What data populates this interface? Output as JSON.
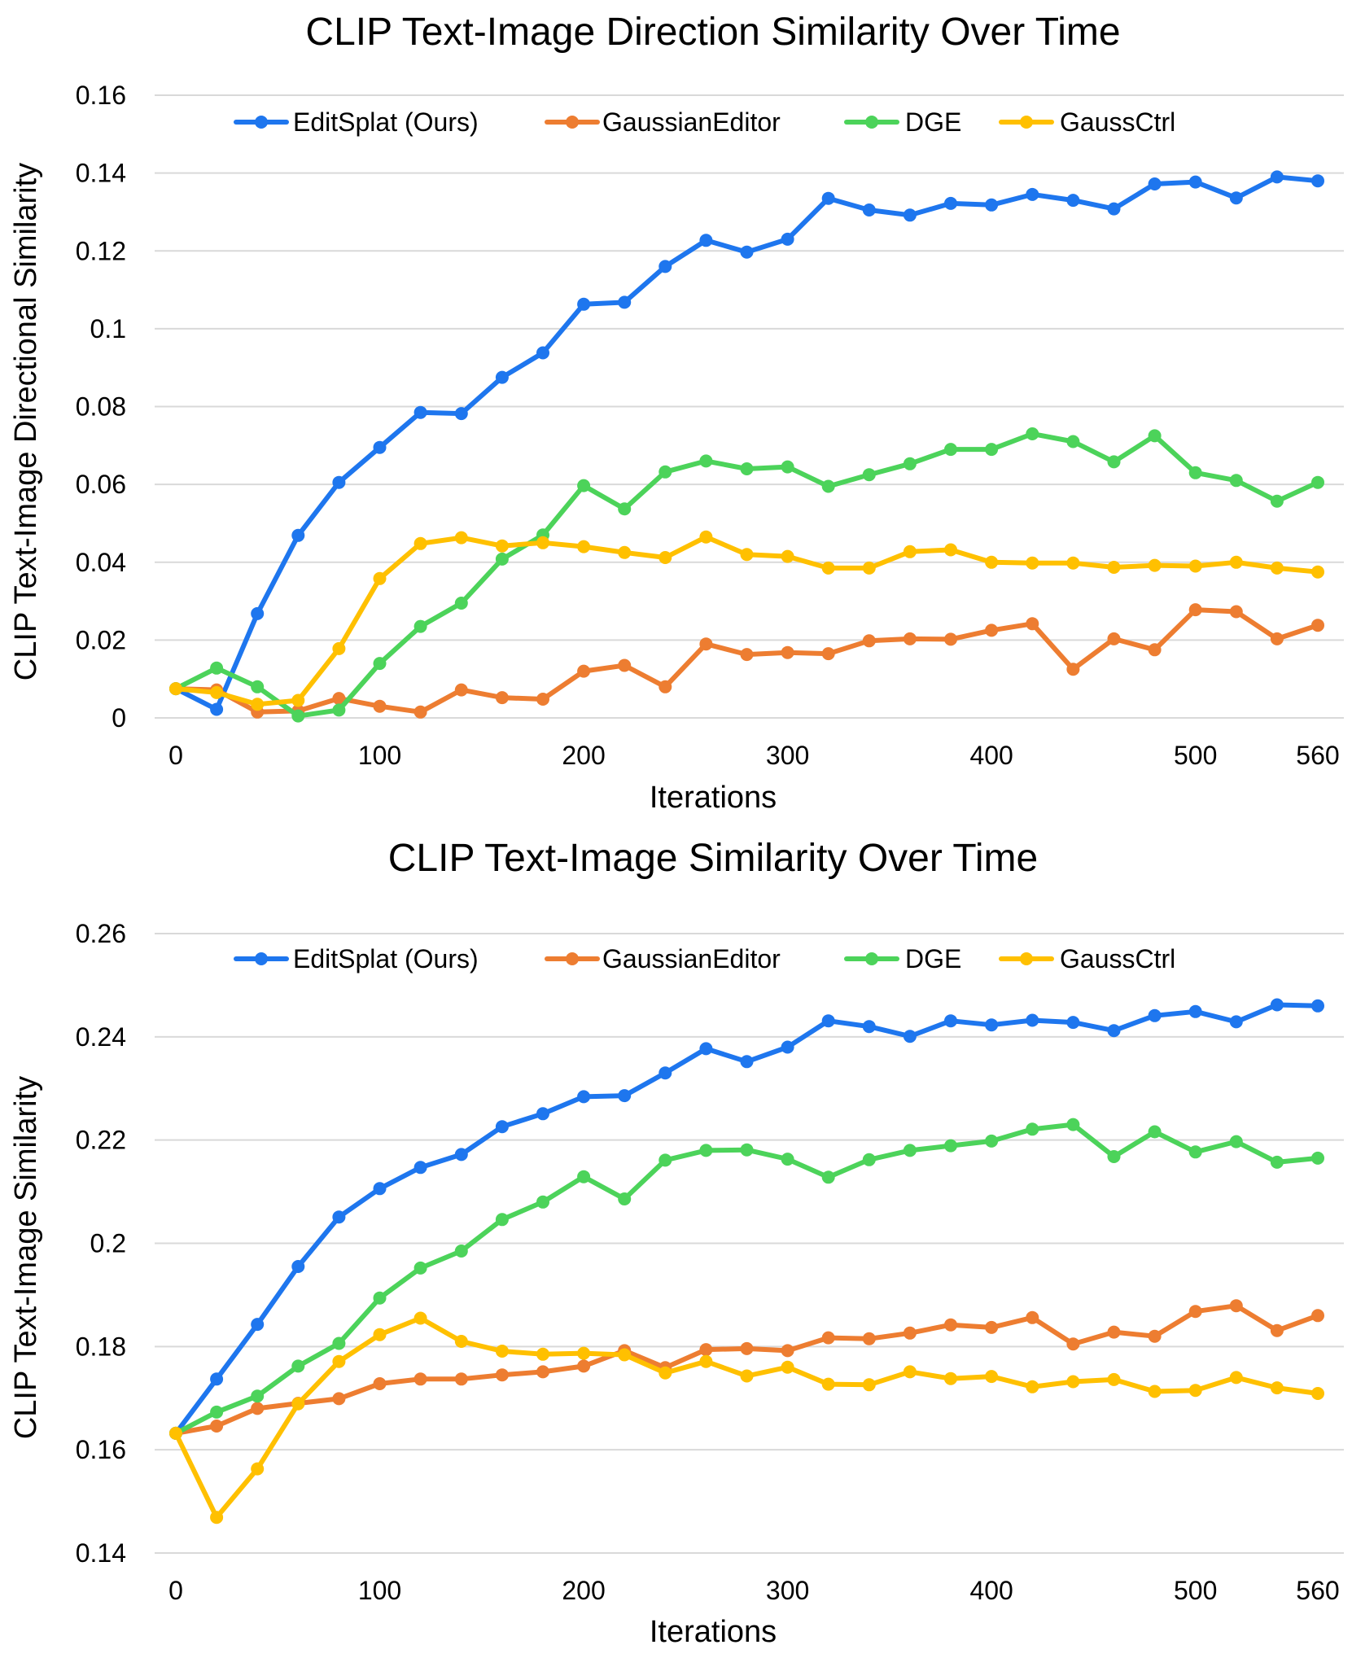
{
  "chart_data": [
    {
      "type": "line",
      "title": "CLIP Text-Image Direction Similarity Over Time",
      "xlabel": "Iterations",
      "ylabel": "CLIP Text-Image Directional Similarity",
      "xlim": [
        0,
        560
      ],
      "ylim": [
        0,
        0.16
      ],
      "x_ticks": [
        0,
        100,
        200,
        300,
        400,
        500,
        560
      ],
      "y_ticks": [
        0,
        0.02,
        0.04,
        0.06,
        0.08,
        0.1,
        0.12,
        0.14,
        0.16
      ],
      "x_tick_labels": [
        "0",
        "100",
        "200",
        "300",
        "400",
        "500",
        "560"
      ],
      "y_tick_labels": [
        "0",
        "0.02",
        "0.04",
        "0.06",
        "0.08",
        "0.1",
        "0.12",
        "0.14",
        "0.16"
      ],
      "grid": true,
      "legend_position": "top",
      "x": [
        0,
        20,
        40,
        60,
        80,
        100,
        120,
        140,
        160,
        180,
        200,
        220,
        240,
        260,
        280,
        300,
        320,
        340,
        360,
        380,
        400,
        420,
        440,
        460,
        480,
        500,
        520,
        540,
        560
      ],
      "series": [
        {
          "name": "EditSplat (Ours)",
          "color": "#1E76EE",
          "values": [
            0.0075,
            0.0022,
            0.0268,
            0.0469,
            0.0605,
            0.0695,
            0.0785,
            0.0782,
            0.0875,
            0.0938,
            0.1063,
            0.1068,
            0.116,
            0.1227,
            0.1197,
            0.123,
            0.1335,
            0.1305,
            0.1292,
            0.1322,
            0.1318,
            0.1345,
            0.133,
            0.1308,
            0.1372,
            0.1377,
            0.1336,
            0.139,
            0.138
          ]
        },
        {
          "name": "GaussianEditor",
          "color": "#ED7D31",
          "values": [
            0.0075,
            0.0072,
            0.0015,
            0.0018,
            0.005,
            0.003,
            0.0015,
            0.0072,
            0.0052,
            0.0048,
            0.012,
            0.0135,
            0.008,
            0.019,
            0.0163,
            0.0168,
            0.0165,
            0.0198,
            0.0203,
            0.0202,
            0.0225,
            0.0242,
            0.0125,
            0.0203,
            0.0175,
            0.0278,
            0.0273,
            0.0203,
            0.0238
          ]
        },
        {
          "name": "DGE",
          "color": "#4CD35A",
          "values": [
            0.0075,
            0.0128,
            0.008,
            0.0005,
            0.002,
            0.014,
            0.0235,
            0.0295,
            0.0408,
            0.047,
            0.0597,
            0.0537,
            0.0632,
            0.066,
            0.064,
            0.0645,
            0.0595,
            0.0625,
            0.0653,
            0.069,
            0.069,
            0.073,
            0.071,
            0.0658,
            0.0725,
            0.063,
            0.061,
            0.0557,
            0.0605
          ]
        },
        {
          "name": "GaussCtrl",
          "color": "#FFC000",
          "values": [
            0.0075,
            0.0065,
            0.0035,
            0.0045,
            0.0178,
            0.0358,
            0.0448,
            0.0463,
            0.0442,
            0.045,
            0.044,
            0.0425,
            0.0412,
            0.0465,
            0.042,
            0.0415,
            0.0385,
            0.0385,
            0.0427,
            0.0432,
            0.04,
            0.0398,
            0.0398,
            0.0387,
            0.0392,
            0.039,
            0.04,
            0.0385,
            0.0375
          ]
        }
      ]
    },
    {
      "type": "line",
      "title": "CLIP Text-Image Similarity Over Time",
      "xlabel": "Iterations",
      "ylabel": "CLIP Text-Image Similarity",
      "xlim": [
        0,
        560
      ],
      "ylim": [
        0.14,
        0.26
      ],
      "x_ticks": [
        0,
        100,
        200,
        300,
        400,
        500,
        560
      ],
      "y_ticks": [
        0.14,
        0.16,
        0.18,
        0.2,
        0.22,
        0.24,
        0.26
      ],
      "x_tick_labels": [
        "0",
        "100",
        "200",
        "300",
        "400",
        "500",
        "560"
      ],
      "y_tick_labels": [
        "0.14",
        "0.16",
        "0.18",
        "0.2",
        "0.22",
        "0.24",
        "0.26"
      ],
      "grid": true,
      "legend_position": "top",
      "x": [
        0,
        20,
        40,
        60,
        80,
        100,
        120,
        140,
        160,
        180,
        200,
        220,
        240,
        260,
        280,
        300,
        320,
        340,
        360,
        380,
        400,
        420,
        440,
        460,
        480,
        500,
        520,
        540,
        560
      ],
      "series": [
        {
          "name": "EditSplat (Ours)",
          "color": "#1E76EE",
          "values": [
            0.1632,
            0.1737,
            0.1843,
            0.1955,
            0.2051,
            0.2106,
            0.2147,
            0.2172,
            0.2226,
            0.2251,
            0.2284,
            0.2286,
            0.233,
            0.2377,
            0.2352,
            0.238,
            0.2431,
            0.242,
            0.2401,
            0.2431,
            0.2423,
            0.2432,
            0.2428,
            0.2412,
            0.2441,
            0.2449,
            0.2429,
            0.2462,
            0.246
          ]
        },
        {
          "name": "GaussianEditor",
          "color": "#ED7D31",
          "values": [
            0.1632,
            0.1646,
            0.168,
            0.169,
            0.1699,
            0.1728,
            0.1737,
            0.1737,
            0.1745,
            0.1751,
            0.1762,
            0.1792,
            0.1759,
            0.1794,
            0.1796,
            0.1792,
            0.1817,
            0.1815,
            0.1826,
            0.1842,
            0.1837,
            0.1856,
            0.1805,
            0.1828,
            0.182,
            0.1868,
            0.1879,
            0.1831,
            0.186
          ]
        },
        {
          "name": "DGE",
          "color": "#4CD35A",
          "values": [
            0.1632,
            0.1673,
            0.1704,
            0.1762,
            0.1806,
            0.1894,
            0.1952,
            0.1985,
            0.2046,
            0.208,
            0.2129,
            0.2086,
            0.2161,
            0.218,
            0.2181,
            0.2163,
            0.2128,
            0.2162,
            0.218,
            0.2189,
            0.2198,
            0.2221,
            0.223,
            0.2168,
            0.2216,
            0.2177,
            0.2197,
            0.2157,
            0.2165
          ]
        },
        {
          "name": "GaussCtrl",
          "color": "#FFC000",
          "values": [
            0.1632,
            0.1469,
            0.1563,
            0.1689,
            0.1771,
            0.1823,
            0.1855,
            0.181,
            0.1791,
            0.1785,
            0.1787,
            0.1784,
            0.1749,
            0.1771,
            0.1743,
            0.176,
            0.1727,
            0.1726,
            0.1751,
            0.1738,
            0.1742,
            0.1722,
            0.1732,
            0.1736,
            0.1713,
            0.1715,
            0.174,
            0.172,
            0.1709
          ]
        }
      ]
    }
  ]
}
